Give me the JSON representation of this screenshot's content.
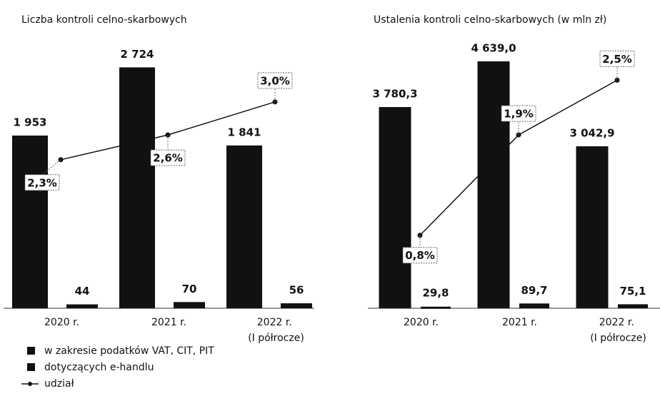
{
  "chart_data": [
    {
      "type": "bar",
      "title": "Liczba kontroli celno-skarbowych",
      "categories": [
        "2020 r.",
        "2021 r.",
        "2022 r. (I półrocze)"
      ],
      "ylim": [
        0,
        2800
      ],
      "y2lim": [
        0.5,
        3.5
      ],
      "series": [
        {
          "name": "w zakresie podatków VAT, CIT, PIT",
          "color": "#111111",
          "values": [
            1953,
            2724,
            1841
          ],
          "value_labels": [
            "1 953",
            "2 724",
            "1 841"
          ]
        },
        {
          "name": "dotyczących e-handlu",
          "color": "#111111",
          "values": [
            44,
            70,
            56
          ]
        },
        {
          "name": "udział",
          "color": "#111111",
          "axis": "y2",
          "type": "line",
          "values": [
            2.3,
            2.6,
            3.0
          ],
          "value_labels": [
            "2,3%",
            "2,6%",
            "3,0%"
          ]
        }
      ]
    },
    {
      "type": "bar",
      "title": "Ustalenia kontroli celno-skarbowych (w mln zł)",
      "categories": [
        "2020 r.",
        "2021 r.",
        "2022 r. (I półrocze)"
      ],
      "ylim": [
        0,
        4800
      ],
      "y2lim": [
        0,
        2.8
      ],
      "series": [
        {
          "color": "#111111",
          "values": [
            3780.3,
            4639.0,
            3042.9
          ],
          "value_labels": [
            "3 780,3",
            "4 639,0",
            "3 042,9"
          ]
        },
        {
          "color": "#111111",
          "values": [
            29.8,
            89.7,
            75.1
          ],
          "value_labels": [
            "29,8",
            "89,7",
            "75,1"
          ]
        },
        {
          "color": "#111111",
          "axis": "y2",
          "type": "line",
          "values": [
            0.8,
            1.9,
            2.5
          ],
          "value_labels": [
            "0,8%",
            "1,9%",
            "2,5%"
          ]
        }
      ]
    }
  ]
}
